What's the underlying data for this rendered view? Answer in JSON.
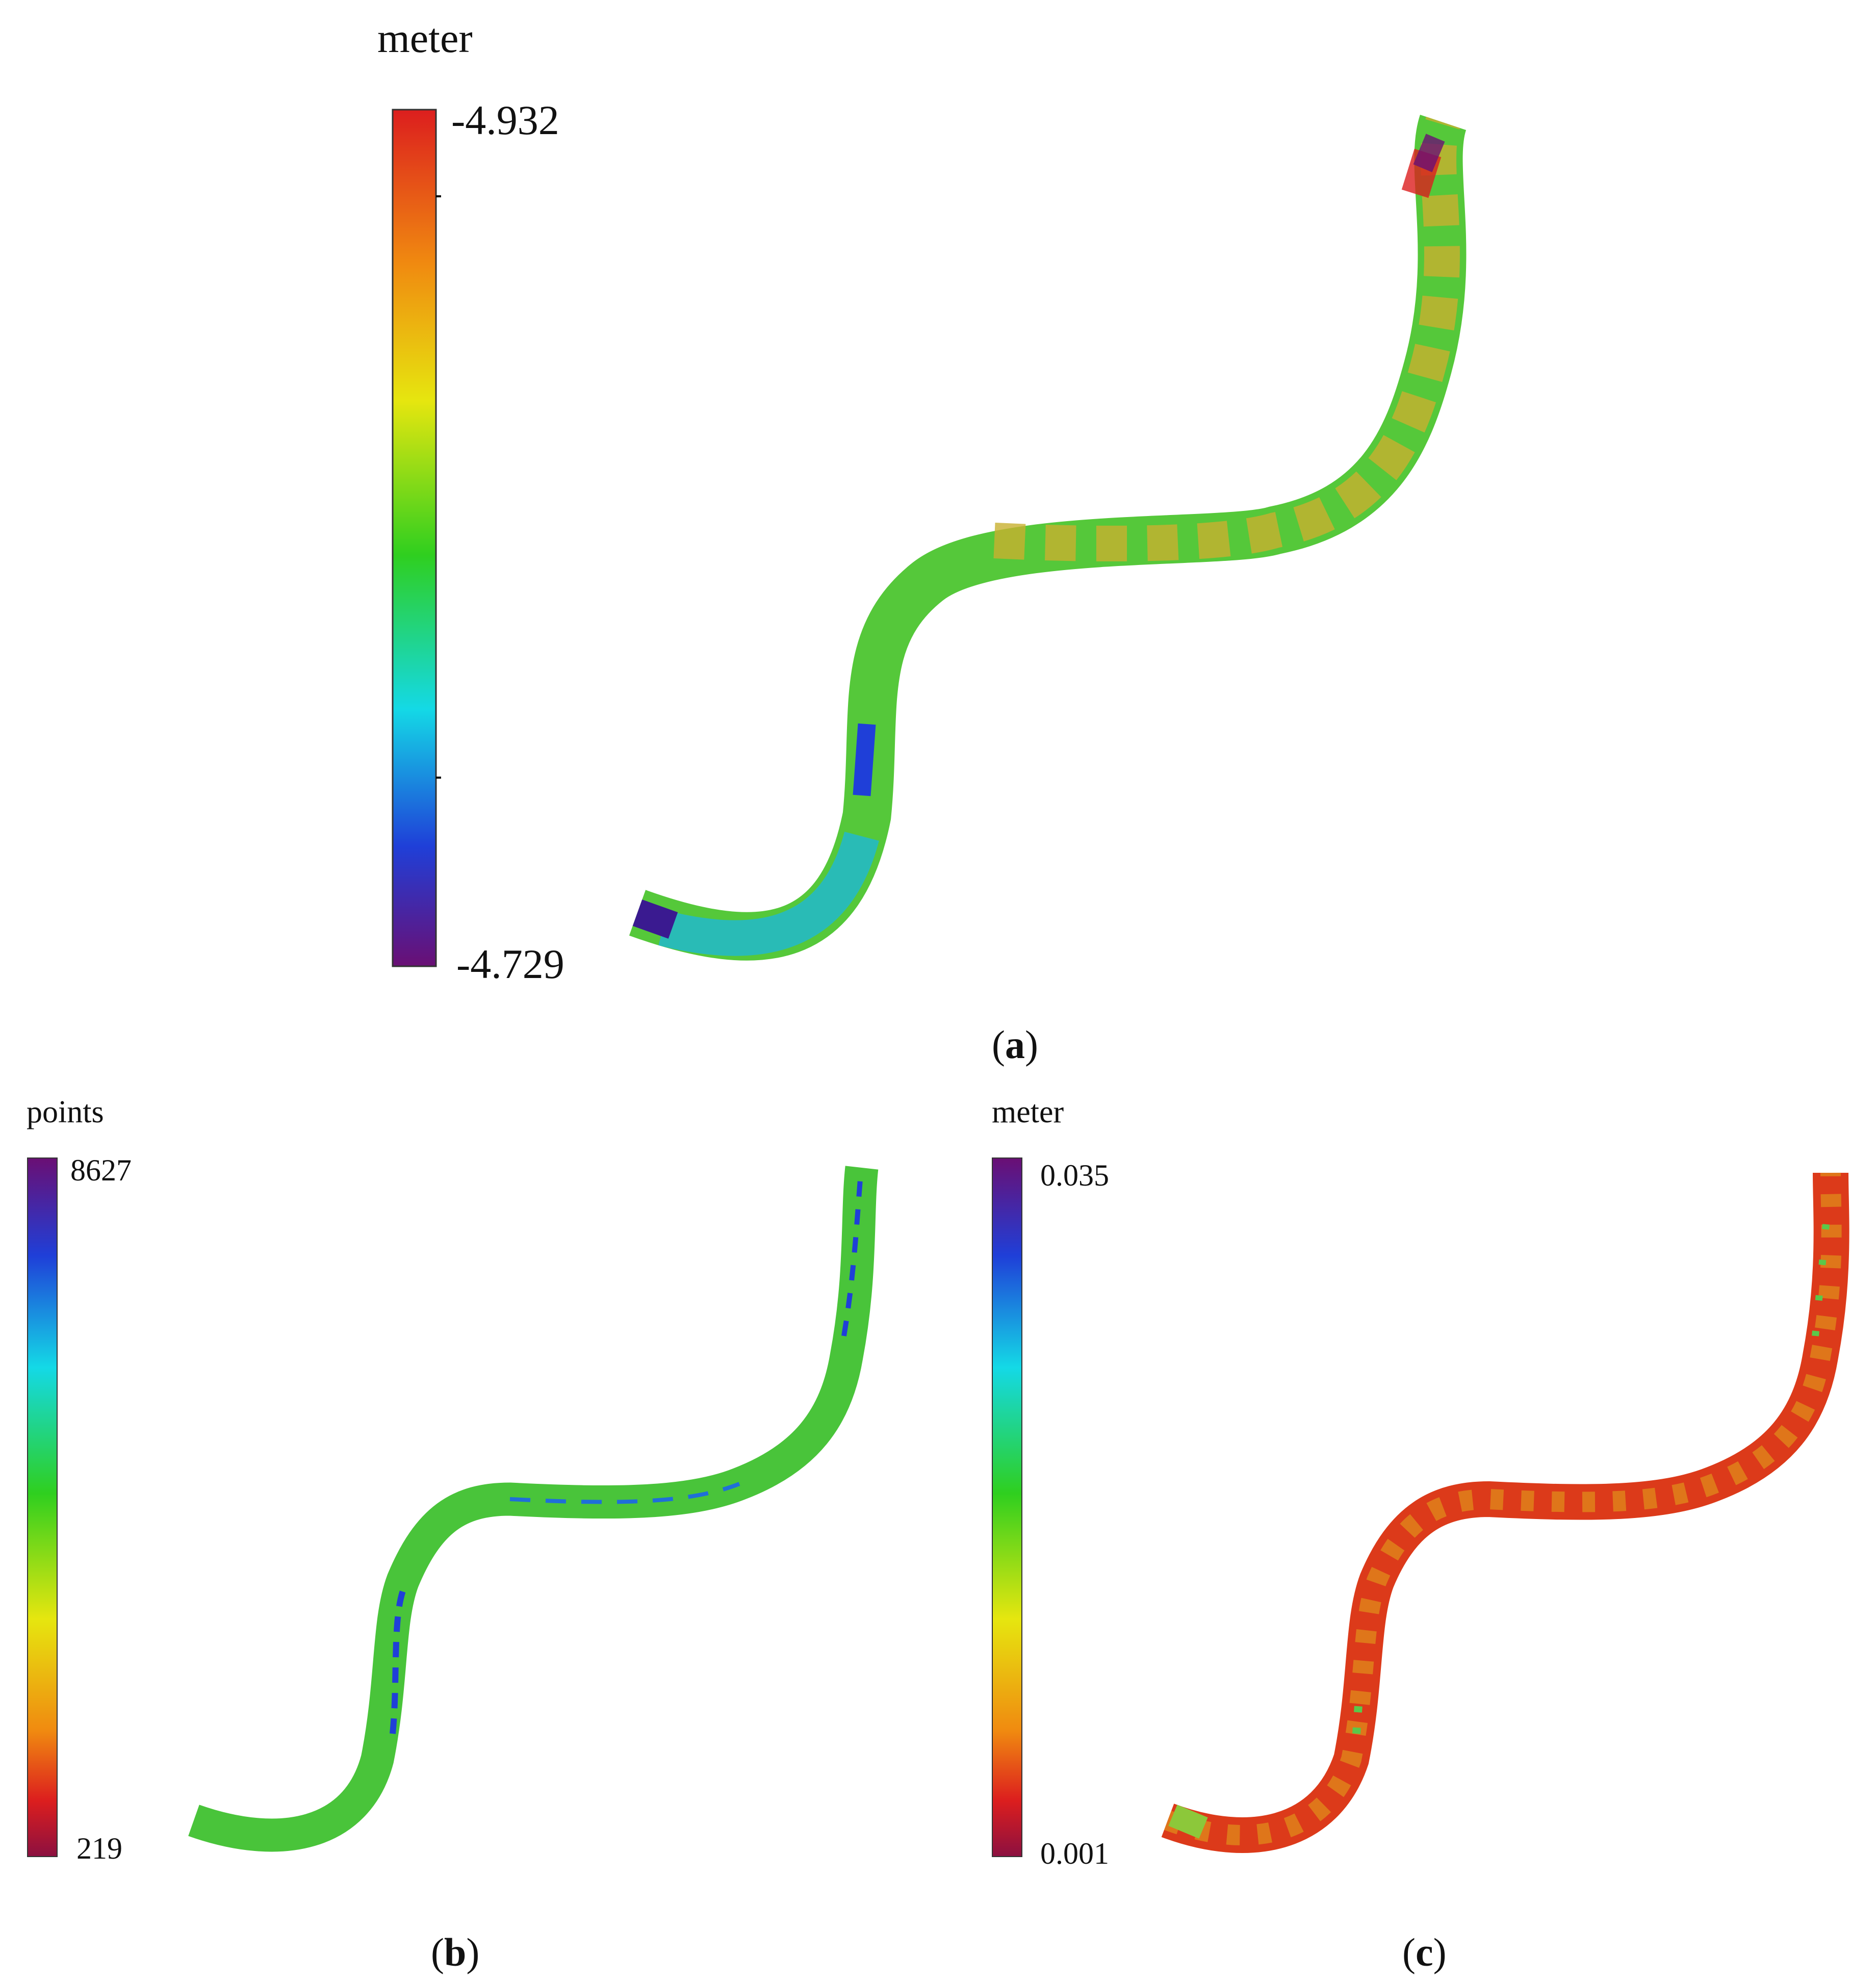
{
  "chart_data": [
    {
      "type": "heatmap",
      "panel": "a",
      "caption": "(a)",
      "colorbar": {
        "unit": "meter",
        "max_label": "-4.932",
        "min_label": "-4.729",
        "range": [
          -4.932,
          -4.729
        ],
        "colormap": "purple-blue-cyan-green-yellow-orange-red"
      },
      "dominant_field": "green to orange, red/purple patches in upper reach, blue-cyan in lower reach"
    },
    {
      "type": "heatmap",
      "panel": "b",
      "caption": "(b)",
      "colorbar": {
        "unit": "points",
        "max_label": "8627",
        "min_label": "219",
        "range": [
          219,
          8627
        ],
        "colormap": "red-orange-yellow-green-cyan-blue-purple"
      },
      "dominant_field": "mostly green with blue streaks"
    },
    {
      "type": "heatmap",
      "panel": "c",
      "caption": "(c)",
      "colorbar": {
        "unit": "meter",
        "max_label": "0.035",
        "min_label": "0.001",
        "range": [
          0.001,
          0.035
        ],
        "colormap": "red-orange-yellow-green-cyan-blue-purple"
      },
      "dominant_field": "mostly red/orange with scattered green"
    }
  ],
  "colors": {
    "purple": "#6a0f74",
    "blue": "#1f3fd8",
    "cyan": "#14d9e6",
    "green": "#2fcf1f",
    "yellow": "#e6e60f",
    "orange": "#f08a10",
    "red": "#dc1e1e",
    "crimson": "#8c1040"
  }
}
